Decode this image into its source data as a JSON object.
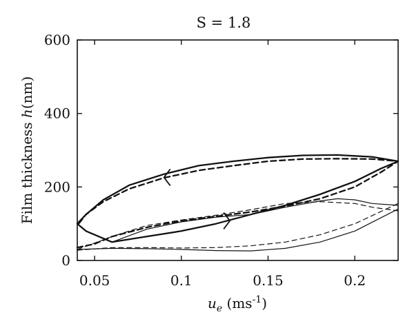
{
  "chart_data": {
    "type": "line",
    "title": "S = 1.8",
    "xlabel": "u_e (ms^-1)",
    "ylabel": "Film thickness h(nm)",
    "xlim": [
      0.04,
      0.225
    ],
    "ylim": [
      0,
      600
    ],
    "xticks": [
      0.05,
      0.1,
      0.15,
      0.2
    ],
    "xtick_labels": [
      "0.05",
      "0.1",
      "0.15",
      "0.2"
    ],
    "yticks": [
      0,
      200,
      400,
      600
    ],
    "ytick_labels": [
      "0",
      "200",
      "400",
      "600"
    ],
    "grid": false,
    "legend": "none",
    "series": [
      {
        "style": "solid-thick",
        "x": [
          0.04,
          0.045,
          0.06,
          0.08,
          0.1,
          0.12,
          0.14,
          0.16,
          0.18,
          0.2,
          0.215,
          0.225,
          0.21,
          0.19,
          0.17,
          0.15,
          0.13,
          0.11,
          0.09,
          0.07,
          0.055,
          0.045,
          0.04
        ],
        "y": [
          100,
          80,
          50,
          65,
          80,
          100,
          125,
          150,
          180,
          215,
          250,
          270,
          282,
          287,
          286,
          280,
          270,
          258,
          235,
          205,
          165,
          125,
          100
        ]
      },
      {
        "style": "dashed-thick",
        "x": [
          0.04,
          0.05,
          0.06,
          0.08,
          0.1,
          0.12,
          0.14,
          0.16,
          0.18,
          0.2,
          0.215,
          0.225,
          0.21,
          0.19,
          0.17,
          0.15,
          0.13,
          0.11,
          0.09,
          0.07,
          0.055,
          0.045,
          0.04
        ],
        "y": [
          35,
          45,
          65,
          90,
          108,
          120,
          132,
          148,
          168,
          200,
          240,
          270,
          276,
          277,
          276,
          270,
          258,
          245,
          225,
          195,
          160,
          125,
          95
        ]
      },
      {
        "style": "solid-thin",
        "x": [
          0.04,
          0.06,
          0.08,
          0.1,
          0.12,
          0.14,
          0.16,
          0.18,
          0.2,
          0.225
        ],
        "y": [
          30,
          33,
          32,
          30,
          27,
          26,
          33,
          50,
          80,
          140
        ]
      },
      {
        "style": "solid-thin",
        "x": [
          0.06,
          0.08,
          0.1,
          0.12,
          0.14,
          0.16,
          0.18,
          0.19,
          0.2,
          0.21,
          0.225
        ],
        "y": [
          50,
          85,
          105,
          118,
          125,
          145,
          162,
          168,
          165,
          155,
          150
        ]
      },
      {
        "style": "dashed-thin",
        "x": [
          0.04,
          0.06,
          0.08,
          0.1,
          0.12,
          0.14,
          0.16,
          0.18,
          0.2,
          0.225
        ],
        "y": [
          28,
          35,
          35,
          34,
          35,
          40,
          50,
          70,
          100,
          155
        ]
      },
      {
        "style": "dashed-thin",
        "x": [
          0.04,
          0.06,
          0.08,
          0.1,
          0.12,
          0.14,
          0.16,
          0.18,
          0.2,
          0.21,
          0.225
        ],
        "y": [
          30,
          65,
          95,
          110,
          123,
          138,
          155,
          160,
          155,
          145,
          135
        ]
      }
    ],
    "annotations": [
      {
        "type": "arrow-marker",
        "x": 0.092,
        "y": 226,
        "direction": "left"
      },
      {
        "type": "arrow-marker",
        "x": 0.126,
        "y": 108,
        "direction": "right"
      }
    ]
  }
}
